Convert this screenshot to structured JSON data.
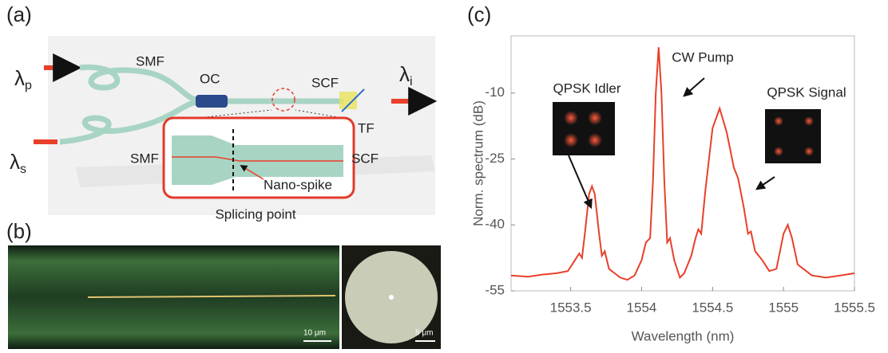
{
  "panels": {
    "a": {
      "label": "(a)",
      "input_pump": {
        "symbol": "λ",
        "sub": "p"
      },
      "input_signal": {
        "symbol": "λ",
        "sub": "s"
      },
      "output_idler": {
        "symbol": "λ",
        "sub": "i"
      },
      "smf": "SMF",
      "oc": "OC",
      "scf": "SCF",
      "tf": "TF",
      "inset": {
        "smf": "SMF",
        "scf": "SCF",
        "nano_spike": "Nano-spike",
        "caption": "Splicing point"
      }
    },
    "b": {
      "label": "(b)",
      "scale_left": "10 μm",
      "scale_right": "5 μm"
    }
  },
  "chart_data": {
    "type": "line",
    "panel_label": "(c)",
    "xlabel": "Wavelength (nm)",
    "ylabel": "Norm. spectrum (dB)",
    "xlim": [
      1553.08,
      1555.5
    ],
    "ylim": [
      -55,
      3
    ],
    "xticks": [
      1553.5,
      1554,
      1554.5,
      1555,
      1555.5
    ],
    "yticks": [
      -55,
      -40,
      -25,
      -10
    ],
    "x": [
      1553.08,
      1553.2,
      1553.3,
      1553.4,
      1553.48,
      1553.53,
      1553.56,
      1553.58,
      1553.6,
      1553.63,
      1553.65,
      1553.67,
      1553.7,
      1553.72,
      1553.74,
      1553.77,
      1553.85,
      1553.9,
      1553.95,
      1554.0,
      1554.03,
      1554.06,
      1554.08,
      1554.1,
      1554.12,
      1554.14,
      1554.16,
      1554.18,
      1554.2,
      1554.23,
      1554.27,
      1554.3,
      1554.35,
      1554.38,
      1554.4,
      1554.42,
      1554.45,
      1554.5,
      1554.55,
      1554.6,
      1554.65,
      1554.68,
      1554.72,
      1554.75,
      1554.77,
      1554.8,
      1554.85,
      1554.9,
      1554.95,
      1555.0,
      1555.03,
      1555.06,
      1555.1,
      1555.2,
      1555.3,
      1555.4,
      1555.5
    ],
    "series": [
      {
        "color": "#e8402a",
        "values": [
          -51.5,
          -51.8,
          -51.3,
          -51,
          -50.5,
          -48,
          -46.5,
          -47.5,
          -42,
          -33,
          -31.2,
          -33,
          -42,
          -47,
          -46,
          -50,
          -52,
          -52.5,
          -51.5,
          -48,
          -44,
          -43,
          -30,
          -10,
          0.4,
          -10,
          -30,
          -44,
          -43,
          -48,
          -52,
          -51,
          -47,
          -43,
          -41,
          -42,
          -32,
          -18,
          -13.5,
          -19,
          -27,
          -29.4,
          -36,
          -42,
          -41.5,
          -46,
          -48,
          -50.5,
          -50,
          -42,
          -40,
          -43,
          -49,
          -51.5,
          -52,
          -51.5,
          -51
        ]
      }
    ],
    "annotations": [
      "CW Pump",
      "QPSK Idler",
      "QPSK Signal"
    ]
  }
}
